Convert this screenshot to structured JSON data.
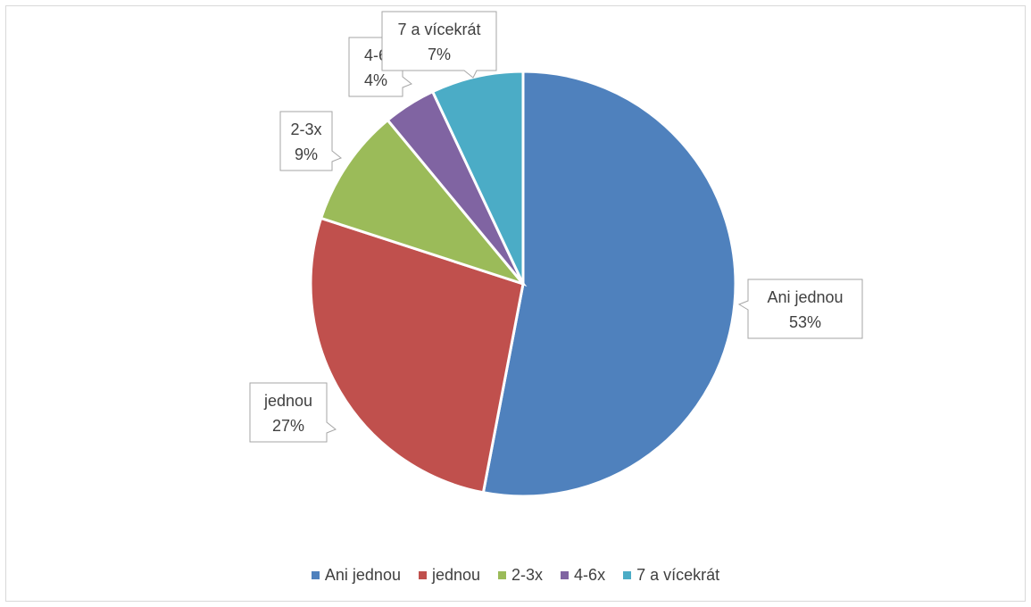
{
  "chart_data": {
    "type": "pie",
    "categories": [
      "Ani jednou",
      "jednou",
      "2-3x",
      "4-6x",
      "7 a vícekrát"
    ],
    "values": [
      53,
      27,
      9,
      4,
      7
    ],
    "labels": [
      {
        "category": "Ani jednou",
        "percent": "53%"
      },
      {
        "category": "jednou",
        "percent": "27%"
      },
      {
        "category": "2-3x",
        "percent": "9%"
      },
      {
        "category": "4-6",
        "percent": "4%"
      },
      {
        "category": "7 a vícekrát",
        "percent": "7%"
      }
    ],
    "colors": [
      "#4F81BD",
      "#C0504D",
      "#9BBB59",
      "#8064A2",
      "#4BACC6"
    ],
    "legend_position": "bottom",
    "start_angle_deg": 0,
    "direction": "clockwise"
  },
  "legend": {
    "items": [
      "Ani jednou",
      "jednou",
      "2-3x",
      "4-6x",
      "7 a vícekrát"
    ]
  }
}
